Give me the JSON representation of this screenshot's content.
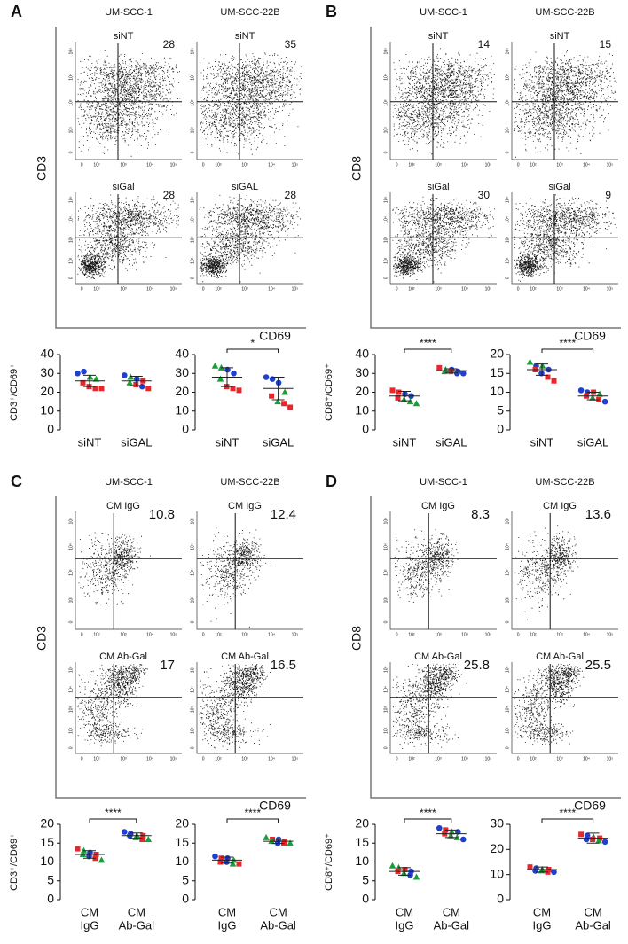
{
  "flow_axis_ticks": [
    "0",
    "10²",
    "10³",
    "10⁴",
    "10⁵"
  ],
  "marker_colors": {
    "circle": "#1f3fcf",
    "triangle": "#1a9e3a",
    "square": "#e8262b"
  },
  "panels": [
    {
      "letter": "A",
      "columns": [
        "UM-SCC-1",
        "UM-SCC-22B"
      ],
      "y_label": "CD3",
      "x_label": "CD69",
      "rows": [
        {
          "labels": [
            "siNT",
            "siNT"
          ],
          "percents": [
            28,
            35
          ]
        },
        {
          "labels": [
            "siGal",
            "siGAL"
          ],
          "percents": [
            28,
            28
          ]
        }
      ]
    },
    {
      "letter": "B",
      "columns": [
        "UM-SCC-1",
        "UM-SCC-22B"
      ],
      "y_label": "CD8",
      "x_label": "CD69",
      "rows": [
        {
          "labels": [
            "siNT",
            "siNT"
          ],
          "percents": [
            14,
            15
          ]
        },
        {
          "labels": [
            "siGal",
            "siGal"
          ],
          "percents": [
            30,
            9
          ]
        }
      ]
    },
    {
      "letter": "C",
      "columns": [
        "UM-SCC-1",
        "UM-SCC-22B"
      ],
      "y_label": "CD3",
      "x_label": "CD69",
      "rows": [
        {
          "labels": [
            "CM IgG",
            "CM IgG"
          ],
          "percents": [
            10.8,
            12.4
          ]
        },
        {
          "labels": [
            "CM Ab-Gal",
            "CM Ab-Gal"
          ],
          "percents": [
            17,
            16.5
          ]
        }
      ]
    },
    {
      "letter": "D",
      "columns": [
        "UM-SCC-1",
        "UM-SCC-22B"
      ],
      "y_label": "CD8",
      "x_label": "CD69",
      "rows": [
        {
          "labels": [
            "CM IgG",
            "CM IgG"
          ],
          "percents": [
            8.3,
            13.6
          ]
        },
        {
          "labels": [
            "CM Ab-Gal",
            "CM Ab-Gal"
          ],
          "percents": [
            25.8,
            25.5
          ]
        }
      ]
    }
  ],
  "chart_data": [
    {
      "type": "dotplot",
      "y_label": "CD3⁺/CD69⁺",
      "categories": [
        [
          "siNT"
        ],
        [
          "siGAL"
        ]
      ],
      "ylim": [
        0,
        40
      ],
      "yticks": [
        0,
        10,
        20,
        30,
        40
      ],
      "groups": [
        {
          "values": [
            30,
            31,
            28,
            27,
            25,
            23,
            22,
            22
          ],
          "markers": [
            "circle",
            "circle",
            "triangle",
            "triangle",
            "square",
            "square",
            "square",
            "square"
          ],
          "mean": 26,
          "sd": 3
        },
        {
          "values": [
            29,
            28,
            27,
            26,
            25,
            24,
            23,
            22
          ],
          "markers": [
            "circle",
            "triangle",
            "circle",
            "square",
            "triangle",
            "square",
            "circle",
            "square"
          ],
          "mean": 26,
          "sd": 2.5
        }
      ]
    },
    {
      "type": "dotplot",
      "categories": [
        [
          "siNT"
        ],
        [
          "siGAL"
        ]
      ],
      "ylim": [
        0,
        40
      ],
      "yticks": [
        0,
        10,
        20,
        30,
        40
      ],
      "significance": "*",
      "groups": [
        {
          "values": [
            34,
            33,
            32,
            30,
            27,
            23,
            22,
            21
          ],
          "markers": [
            "triangle",
            "triangle",
            "circle",
            "circle",
            "triangle",
            "square",
            "square",
            "square"
          ],
          "mean": 28,
          "sd": 5
        },
        {
          "values": [
            28,
            27,
            25,
            20,
            18,
            15,
            14,
            12
          ],
          "markers": [
            "circle",
            "circle",
            "circle",
            "triangle",
            "square",
            "triangle",
            "square",
            "square"
          ],
          "mean": 22,
          "sd": 6
        }
      ]
    },
    {
      "type": "dotplot",
      "y_label": "CD8⁺/CD69⁺",
      "categories": [
        [
          "siNT"
        ],
        [
          "siGAL"
        ]
      ],
      "ylim": [
        0,
        40
      ],
      "yticks": [
        0,
        10,
        20,
        30,
        40
      ],
      "significance": "****",
      "groups": [
        {
          "values": [
            21,
            20,
            19,
            18,
            17,
            16,
            15,
            14
          ],
          "markers": [
            "square",
            "square",
            "circle",
            "circle",
            "square",
            "triangle",
            "triangle",
            "triangle"
          ],
          "mean": 18,
          "sd": 2.5
        },
        {
          "values": [
            33,
            32,
            32,
            31,
            31,
            31,
            30,
            30
          ],
          "markers": [
            "square",
            "triangle",
            "circle",
            "circle",
            "triangle",
            "square",
            "circle",
            "circle"
          ],
          "mean": 31.5,
          "sd": 1
        }
      ]
    },
    {
      "type": "dotplot",
      "categories": [
        [
          "siNT"
        ],
        [
          "siGAL"
        ]
      ],
      "ylim": [
        0,
        20
      ],
      "yticks": [
        0,
        5,
        10,
        15,
        20
      ],
      "significance": "****",
      "groups": [
        {
          "values": [
            18,
            17,
            17,
            16,
            16,
            15,
            14,
            13
          ],
          "markers": [
            "triangle",
            "circle",
            "triangle",
            "circle",
            "square",
            "circle",
            "square",
            "square"
          ],
          "mean": 16,
          "sd": 1.5
        },
        {
          "values": [
            10.5,
            10,
            10,
            9.5,
            9,
            8.5,
            8,
            7.5
          ],
          "markers": [
            "circle",
            "circle",
            "square",
            "triangle",
            "square",
            "triangle",
            "square",
            "circle"
          ],
          "mean": 9,
          "sd": 1
        }
      ]
    },
    {
      "type": "dotplot",
      "y_label": "CD3⁺/CD69⁺",
      "categories": [
        [
          "CM",
          "IgG"
        ],
        [
          "CM",
          "Ab-Gal"
        ]
      ],
      "ylim": [
        0,
        20
      ],
      "yticks": [
        0,
        5,
        10,
        15,
        20
      ],
      "significance": "****",
      "groups": [
        {
          "values": [
            13.5,
            13,
            12.5,
            12,
            12,
            11.5,
            11,
            10.5
          ],
          "markers": [
            "square",
            "triangle",
            "circle",
            "square",
            "triangle",
            "circle",
            "square",
            "triangle"
          ],
          "mean": 12,
          "sd": 1
        },
        {
          "values": [
            18,
            17.5,
            17,
            17,
            17,
            16.5,
            16,
            16
          ],
          "markers": [
            "circle",
            "circle",
            "triangle",
            "square",
            "circle",
            "triangle",
            "square",
            "triangle"
          ],
          "mean": 17,
          "sd": 0.7
        }
      ]
    },
    {
      "type": "dotplot",
      "categories": [
        [
          "CM",
          "IgG"
        ],
        [
          "CM",
          "Ab-Gal"
        ]
      ],
      "ylim": [
        0,
        20
      ],
      "yticks": [
        0,
        5,
        10,
        15,
        20
      ],
      "significance": "****",
      "groups": [
        {
          "values": [
            11.5,
            11,
            11,
            10.5,
            10,
            10,
            9.5,
            9.5
          ],
          "markers": [
            "circle",
            "square",
            "circle",
            "triangle",
            "square",
            "circle",
            "triangle",
            "square"
          ],
          "mean": 10.5,
          "sd": 0.8
        },
        {
          "values": [
            16.5,
            16,
            16,
            15.5,
            15.5,
            15,
            15,
            15
          ],
          "markers": [
            "triangle",
            "square",
            "circle",
            "square",
            "triangle",
            "circle",
            "square",
            "triangle"
          ],
          "mean": 15.5,
          "sd": 0.6
        }
      ]
    },
    {
      "type": "dotplot",
      "y_label": "CD8⁺/CD69⁺",
      "categories": [
        [
          "CM",
          "IgG"
        ],
        [
          "CM",
          "Ab-Gal"
        ]
      ],
      "ylim": [
        0,
        20
      ],
      "yticks": [
        0,
        5,
        10,
        15,
        20
      ],
      "significance": "****",
      "groups": [
        {
          "values": [
            9,
            8.5,
            8,
            7.5,
            7.5,
            7,
            6.5,
            6
          ],
          "markers": [
            "triangle",
            "triangle",
            "square",
            "circle",
            "square",
            "triangle",
            "circle",
            "triangle"
          ],
          "mean": 7.5,
          "sd": 1
        },
        {
          "values": [
            19,
            18.5,
            18,
            18,
            17.5,
            17,
            16.5,
            16
          ],
          "markers": [
            "circle",
            "square",
            "triangle",
            "circle",
            "square",
            "triangle",
            "triangle",
            "circle"
          ],
          "mean": 17.5,
          "sd": 1
        }
      ]
    },
    {
      "type": "dotplot",
      "categories": [
        [
          "CM",
          "IgG"
        ],
        [
          "CM",
          "Ab-Gal"
        ]
      ],
      "ylim": [
        0,
        30
      ],
      "yticks": [
        0,
        10,
        20,
        30
      ],
      "significance": "****",
      "groups": [
        {
          "values": [
            13,
            12.5,
            12,
            12,
            11.5,
            11.5,
            11,
            11
          ],
          "markers": [
            "square",
            "circle",
            "triangle",
            "square",
            "circle",
            "triangle",
            "square",
            "circle"
          ],
          "mean": 12,
          "sd": 1
        },
        {
          "values": [
            26,
            25.5,
            25,
            24.5,
            24,
            24,
            23.5,
            23
          ],
          "markers": [
            "square",
            "circle",
            "triangle",
            "square",
            "circle",
            "square",
            "triangle",
            "circle"
          ],
          "mean": 24.5,
          "sd": 2
        }
      ]
    }
  ]
}
